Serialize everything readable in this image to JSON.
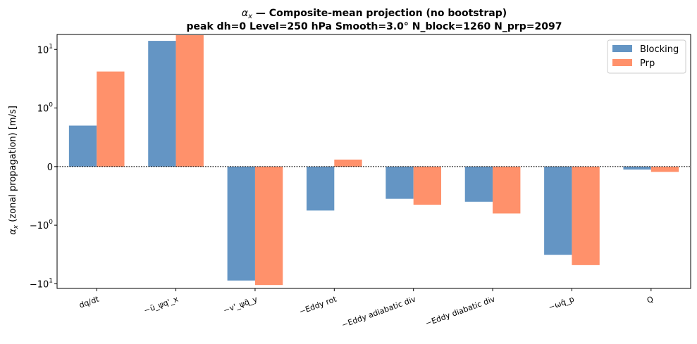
{
  "chart_data": {
    "type": "bar",
    "title_line1": "α",
    "title_sub": "x",
    "title_line1_rest": " — Composite-mean projection (no bootstrap)",
    "title_line2": "peak dh=0  Level=250 hPa  Smooth=3.0°  N_block=1260  N_prp=2097",
    "ylabel_main": "α",
    "ylabel_sub": "x",
    "ylabel_rest": " (zonal propagation) [m/s]",
    "yscale": "symlog",
    "linthresh": 1,
    "ylim": [
      -12,
      18
    ],
    "yticks": [
      {
        "value": 10,
        "base": "10",
        "exp": "1"
      },
      {
        "value": 1,
        "base": "10",
        "exp": "0"
      },
      {
        "value": 0,
        "base": "0",
        "exp": ""
      },
      {
        "value": -1,
        "base": "−10",
        "exp": "0"
      },
      {
        "value": -10,
        "base": "−10",
        "exp": "1"
      }
    ],
    "categories": [
      "dq/dt",
      "−ū_ψq'_x",
      "−v'_ψq̄_y",
      "−Eddy rot",
      "−Eddy adiabatic div",
      "−Eddy diabatic div",
      "−ωq̄_p",
      "Q"
    ],
    "series": [
      {
        "name": "Blocking",
        "color": "#6495c4",
        "values": [
          0.7,
          14.0,
          -8.8,
          -0.75,
          -0.55,
          -0.6,
          -3.2,
          -0.05
        ]
      },
      {
        "name": "Prp",
        "color": "#ff916b",
        "values": [
          4.2,
          17.5,
          -10.5,
          0.12,
          -0.65,
          -0.8,
          -4.8,
          -0.09
        ]
      }
    ],
    "legend_position": "top-right",
    "zero_line": "dotted",
    "grid": false
  }
}
